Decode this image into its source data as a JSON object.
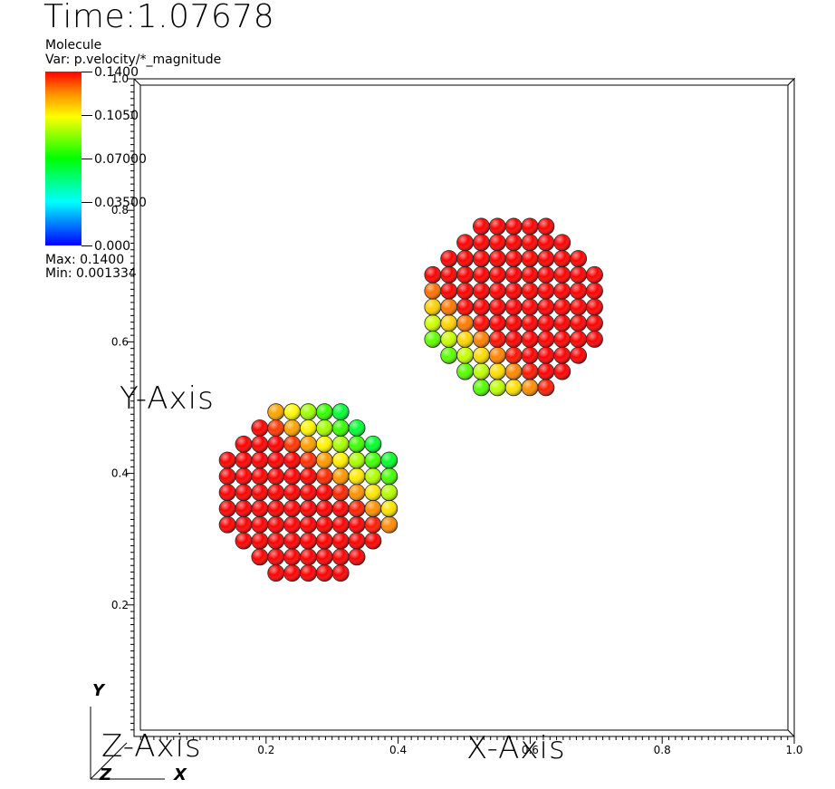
{
  "time_label": "Time:1.07678",
  "legend": {
    "title": "Molecule",
    "variable": "Var: p.velocity/*_magnitude",
    "labels": [
      "0.1400",
      "0.1050",
      "0.07000",
      "0.03500",
      "0.000"
    ],
    "max_label": "Max:  0.1400",
    "min_label": "Min:  0.001334",
    "colors": [
      "#ff0000",
      "#ff8800",
      "#ffff00",
      "#00ff00",
      "#00ffff",
      "#0000ff"
    ]
  },
  "axes": {
    "x_title": "X-Axis",
    "y_title": "Y-Axis",
    "z_title": "Z-Axis",
    "x_ticks": [
      "0.2",
      "0.4",
      "0.6",
      "0.8",
      "1.0"
    ],
    "y_ticks": [
      "0.2",
      "0.4",
      "0.6",
      "0.8",
      "1.0"
    ],
    "xlim": [
      0,
      1
    ],
    "ylim": [
      0,
      1
    ]
  },
  "triad": {
    "x": "X",
    "y": "Y",
    "z": "Z"
  },
  "particles": {
    "spacing": 0.0245,
    "disks": [
      {
        "center": [
          0.575,
          0.653
        ],
        "radius": 0.138
      },
      {
        "center": [
          0.264,
          0.371
        ],
        "radius": 0.138
      }
    ],
    "cut_line": {
      "point": [
        0.458,
        0.46
      ],
      "direction": [
        0.72,
        -0.69
      ]
    },
    "velocity_range": [
      0.001334,
      0.14
    ]
  }
}
